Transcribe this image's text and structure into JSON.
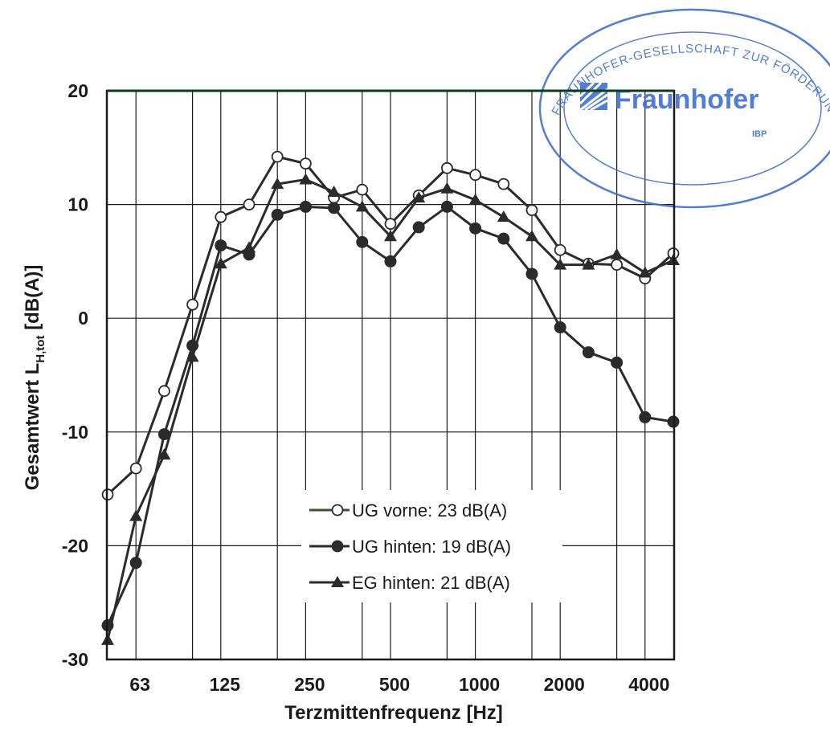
{
  "chart_data": {
    "type": "line",
    "xlabel": "Terzmittenfrequenz [Hz]",
    "ylabel_main": "Gesamtwert L",
    "ylabel_sub": "H,tot",
    "ylabel_unit": " [dB(A)]",
    "ylim": [
      -30,
      20
    ],
    "yticks": [
      20,
      10,
      0,
      -10,
      -20,
      -30
    ],
    "grid": true,
    "x": [
      "50",
      "63",
      "80",
      "100",
      "125",
      "160",
      "200",
      "250",
      "315",
      "400",
      "500",
      "630",
      "800",
      "1000",
      "1250",
      "1600",
      "2000",
      "2500",
      "3150",
      "4000",
      "5000"
    ],
    "xtick_labels": [
      "63",
      "125",
      "250",
      "500",
      "1000",
      "2000",
      "4000"
    ],
    "legend_position": "bottom-center",
    "series": [
      {
        "name": "UG vorne: 23 dB(A)",
        "marker": "open-circle",
        "values": [
          -15.5,
          -13.2,
          -6.4,
          1.2,
          8.9,
          10.0,
          14.2,
          13.6,
          10.6,
          11.3,
          8.3,
          10.8,
          13.2,
          12.6,
          11.8,
          9.5,
          6.0,
          4.8,
          4.7,
          3.5,
          5.7
        ]
      },
      {
        "name": "UG hinten: 19 dB(A)",
        "marker": "filled-circle",
        "values": [
          -27.0,
          -21.5,
          -10.2,
          -2.4,
          6.4,
          5.6,
          9.1,
          9.8,
          9.7,
          6.7,
          5.0,
          8.0,
          9.8,
          7.9,
          7.0,
          3.9,
          -0.8,
          -3.0,
          -3.9,
          -8.7,
          -9.1
        ]
      },
      {
        "name": "EG hinten: 21 dB(A)",
        "marker": "filled-triangle",
        "values": [
          -28.3,
          -17.4,
          -12.0,
          -3.4,
          4.8,
          6.2,
          11.8,
          12.2,
          11.1,
          9.8,
          7.2,
          10.6,
          11.4,
          10.4,
          8.9,
          7.2,
          4.7,
          4.7,
          5.6,
          4.0,
          5.1
        ]
      }
    ]
  },
  "stamp": {
    "ring_text": "FRAUNHOFER-GESELLSCHAFT ZUR FÖRDERUNG DER ANGEWANDTEN FORSCHUNG E.V.",
    "brand": "Fraunhofer",
    "institute": "IBP",
    "color": "#3f6fd1"
  },
  "colors": {
    "line": "#2b2b2b",
    "grid": "#1a1a1a",
    "frame_top": "#0f3a1a"
  }
}
